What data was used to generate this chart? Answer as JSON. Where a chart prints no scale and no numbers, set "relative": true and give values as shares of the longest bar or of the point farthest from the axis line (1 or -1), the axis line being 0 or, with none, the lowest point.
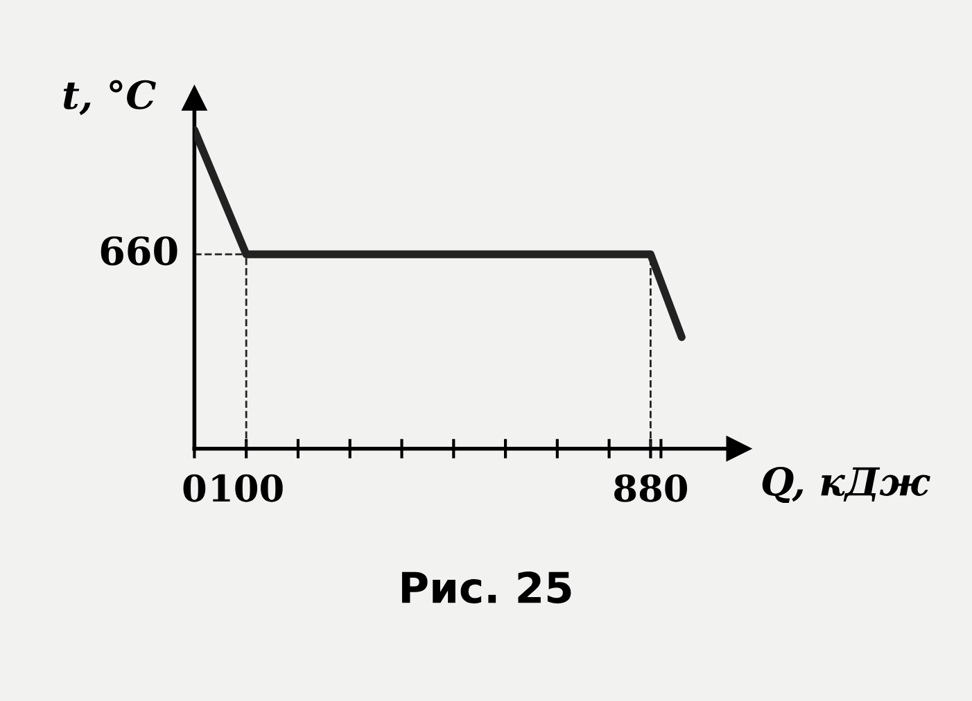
{
  "chart_data": {
    "type": "line",
    "xlabel": "Q, кДж",
    "ylabel": "t, °C",
    "relative": true,
    "x": [
      0,
      100,
      880,
      940
    ],
    "series": [
      {
        "color": "#222222",
        "values": [
          1,
          0.61,
          0.61,
          0.35
        ]
      }
    ],
    "xlim": [
      0,
      1050
    ],
    "xticks": [
      0,
      100,
      {
        "value": 200,
        "label": null
      },
      {
        "value": 300,
        "label": null
      },
      {
        "value": 400,
        "label": null
      },
      {
        "value": 500,
        "label": null
      },
      {
        "value": 600,
        "label": null
      },
      {
        "value": 700,
        "label": null
      },
      {
        "value": 800,
        "label": null
      },
      880,
      {
        "value": 900,
        "label": null
      }
    ],
    "ref_lines": [
      {
        "axis": "x",
        "value": 100,
        "line_style": "dashed"
      },
      {
        "axis": "x",
        "value": 880,
        "line_style": "dashed"
      },
      {
        "axis": "y",
        "value": 0.61,
        "line_style": "dashed"
      }
    ],
    "grid": false,
    "legend": false,
    "marker": "none",
    "line_style": "solid",
    "annotations": [
      {
        "text": "660",
        "x": 0,
        "y": 0.61
      },
      "Рис. 25"
    ]
  }
}
